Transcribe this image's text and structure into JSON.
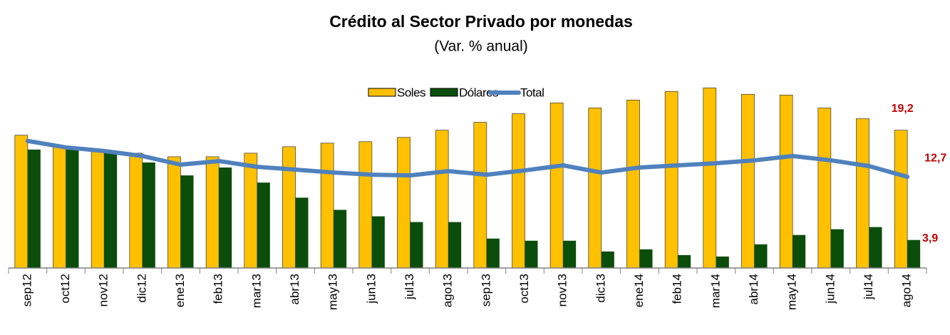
{
  "chart_data": {
    "type": "bar_line",
    "title": "Crédito al Sector Privado por monedas",
    "subtitle": "(Var. % anual)",
    "categories": [
      "sep12",
      "oct12",
      "nov12",
      "dic12",
      "ene13",
      "feb13",
      "mar13",
      "abr13",
      "may13",
      "jun13",
      "jul13",
      "ago13",
      "sep13",
      "oct13",
      "nov13",
      "dic13",
      "ene14",
      "feb14",
      "mar14",
      "abr14",
      "may14",
      "jun14",
      "jul14",
      "ago14"
    ],
    "ylim": [
      0,
      26
    ],
    "series": [
      {
        "name": "Soles",
        "type": "bar",
        "color": "#FFC000",
        "values": [
          18.5,
          17.0,
          16.5,
          16.0,
          15.5,
          15.5,
          16.0,
          16.9,
          17.4,
          17.6,
          18.2,
          19.2,
          20.3,
          21.5,
          23.0,
          22.3,
          23.4,
          24.6,
          25.1,
          24.2,
          24.1,
          22.3,
          20.8,
          19.2
        ],
        "value_labels": [
          null,
          null,
          null,
          null,
          null,
          null,
          null,
          null,
          null,
          null,
          null,
          null,
          null,
          null,
          null,
          null,
          null,
          null,
          null,
          null,
          null,
          null,
          null,
          "19,2"
        ]
      },
      {
        "name": "Dólares",
        "type": "bar",
        "color": "#0B4D0B",
        "values": [
          16.5,
          16.5,
          16.0,
          14.7,
          12.9,
          14.0,
          11.9,
          9.8,
          8.1,
          7.2,
          6.4,
          6.4,
          4.1,
          3.8,
          3.8,
          2.3,
          2.6,
          1.8,
          1.6,
          3.3,
          4.6,
          5.4,
          5.7,
          3.9
        ],
        "value_labels": [
          null,
          null,
          null,
          null,
          null,
          null,
          null,
          null,
          null,
          null,
          null,
          null,
          null,
          null,
          null,
          null,
          null,
          null,
          null,
          null,
          null,
          null,
          null,
          "3,9"
        ]
      },
      {
        "name": "Total",
        "type": "line",
        "color": "#4F81BD",
        "values": [
          17.7,
          16.8,
          16.3,
          15.6,
          14.4,
          14.9,
          14.1,
          13.7,
          13.3,
          13.0,
          12.9,
          13.5,
          13.0,
          13.6,
          14.3,
          13.3,
          14.0,
          14.3,
          14.6,
          15.0,
          15.6,
          15.0,
          14.2,
          12.7
        ],
        "value_labels": [
          null,
          null,
          null,
          null,
          null,
          null,
          null,
          null,
          null,
          null,
          null,
          null,
          null,
          null,
          null,
          null,
          null,
          null,
          null,
          null,
          null,
          null,
          null,
          "12,7"
        ]
      }
    ]
  }
}
